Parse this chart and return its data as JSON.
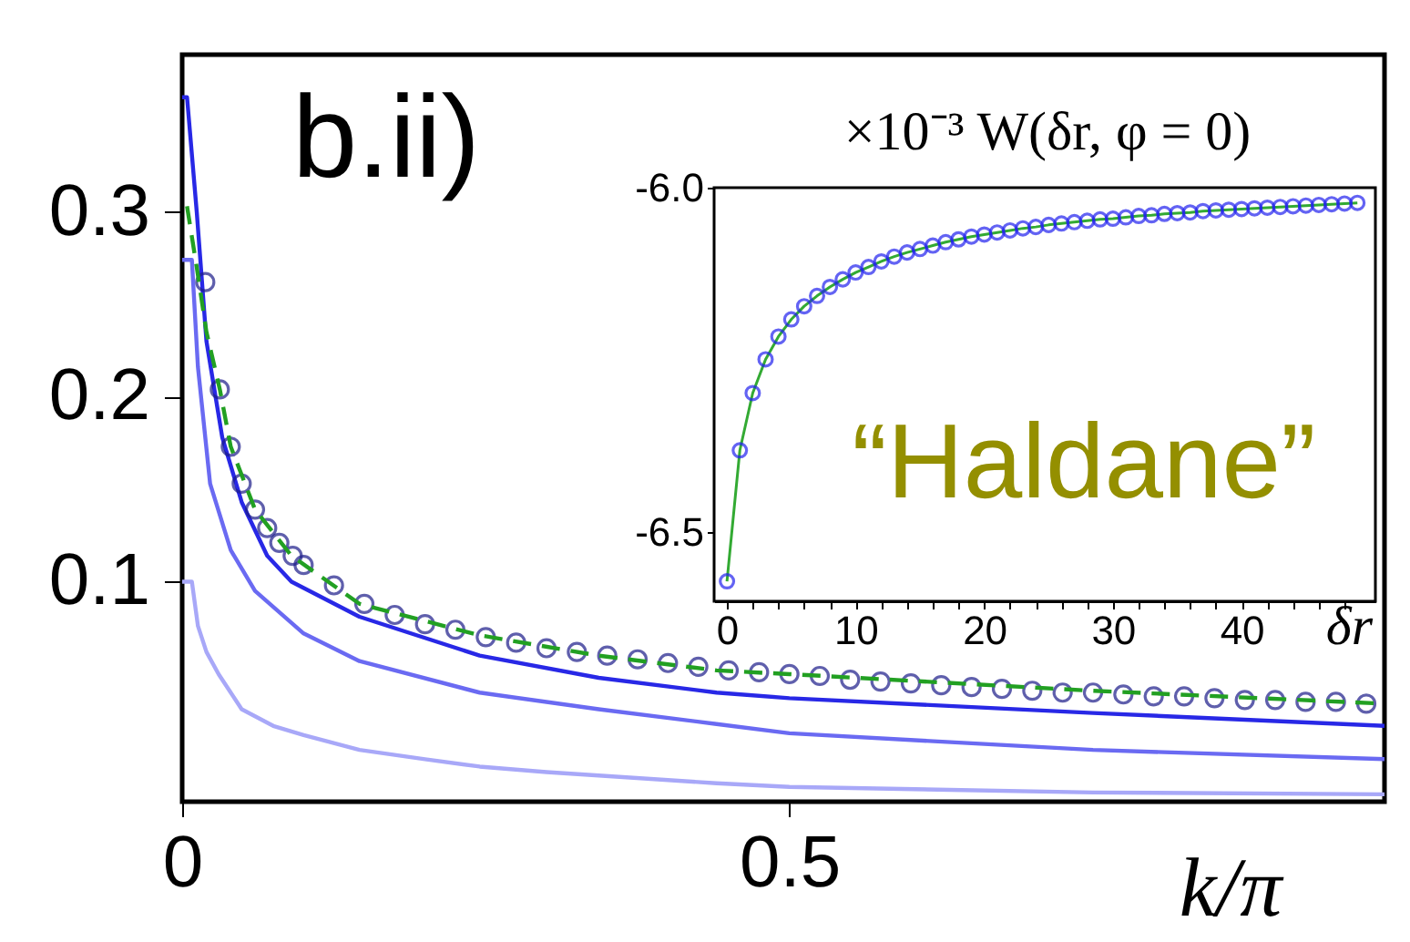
{
  "chart_data": [
    {
      "type": "line",
      "xlabel": "k/π",
      "annotations": [
        "b.ii)"
      ],
      "xlim": [
        0,
        0.99
      ],
      "ylim": [
        -0.019,
        0.385
      ],
      "xticks": [
        {
          "value": 0,
          "label": "0"
        },
        0.5
      ],
      "yticks": [
        0.1,
        0.2,
        0.3
      ],
      "grid": false,
      "series": [
        {
          "color": "#a8a8f8",
          "x": [
            0,
            0.008,
            0.013,
            0.02,
            0.03,
            0.049,
            0.075,
            0.1,
            0.146,
            0.2,
            0.245,
            0.3,
            0.44,
            0.5,
            0.75,
            0.99
          ],
          "values": [
            0.1,
            0.1,
            0.076,
            0.062,
            0.05,
            0.031,
            0.022,
            0.017,
            0.009,
            0.004,
            0.0,
            -0.003,
            -0.009,
            -0.011,
            -0.014,
            -0.015
          ]
        },
        {
          "color": "#6a6af2",
          "x": [
            0,
            0.008,
            0.013,
            0.023,
            0.04,
            0.06,
            0.1,
            0.146,
            0.245,
            0.343,
            0.44,
            0.5,
            0.75,
            0.99
          ],
          "values": [
            0.274,
            0.274,
            0.216,
            0.153,
            0.117,
            0.095,
            0.072,
            0.057,
            0.04,
            0.031,
            0.023,
            0.018,
            0.009,
            0.004
          ]
        },
        {
          "color": "#2828e6",
          "x": [
            0,
            0.004,
            0.012,
            0.02,
            0.033,
            0.049,
            0.07,
            0.09,
            0.146,
            0.245,
            0.343,
            0.44,
            0.5,
            0.75,
            0.99
          ],
          "values": [
            0.362,
            0.362,
            0.3,
            0.23,
            0.178,
            0.143,
            0.114,
            0.1,
            0.081,
            0.06,
            0.048,
            0.04,
            0.037,
            0.029,
            0.022
          ]
        },
        {
          "type": "scatter",
          "marker": "circle",
          "color": "#1c1c8a",
          "x": [
            0.019,
            0.031,
            0.04,
            0.049,
            0.06,
            0.07,
            0.08,
            0.091,
            0.1,
            0.125,
            0.15,
            0.175,
            0.2,
            0.225,
            0.25,
            0.275,
            0.3,
            0.325,
            0.35,
            0.375,
            0.4,
            0.425,
            0.45,
            0.475,
            0.5,
            0.525,
            0.55,
            0.575,
            0.6,
            0.625,
            0.65,
            0.675,
            0.7,
            0.725,
            0.75,
            0.775,
            0.8,
            0.825,
            0.85,
            0.875,
            0.9,
            0.925,
            0.95,
            0.975
          ],
          "values": [
            0.262,
            0.204,
            0.173,
            0.153,
            0.139,
            0.129,
            0.121,
            0.114,
            0.109,
            0.098,
            0.088,
            0.082,
            0.077,
            0.074,
            0.07,
            0.067,
            0.064,
            0.062,
            0.06,
            0.058,
            0.056,
            0.054,
            0.052,
            0.051,
            0.05,
            0.049,
            0.047,
            0.046,
            0.045,
            0.044,
            0.043,
            0.042,
            0.041,
            0.04,
            0.04,
            0.039,
            0.038,
            0.038,
            0.037,
            0.036,
            0.036,
            0.035,
            0.035,
            0.034
          ]
        },
        {
          "color": "#22a022",
          "line_style": "dashed",
          "x": [
            0.004,
            0.012,
            0.02,
            0.031,
            0.04,
            0.06,
            0.09,
            0.146,
            0.245,
            0.343,
            0.44,
            0.5,
            0.75,
            0.99
          ],
          "values": [
            0.303,
            0.27,
            0.235,
            0.204,
            0.173,
            0.139,
            0.114,
            0.088,
            0.071,
            0.06,
            0.052,
            0.05,
            0.041,
            0.034
          ]
        }
      ]
    },
    {
      "type": "line",
      "title": "×10⁻³ W(δr, φ = 0)",
      "xlabel": "δr",
      "annotations": [
        "“Haldane”"
      ],
      "xlim": [
        -1,
        50.4
      ],
      "ylim": [
        -6.6,
        -6.0
      ],
      "grid": false,
      "xticks": [
        0,
        {
          "value": 2,
          "label": null
        },
        {
          "value": 4,
          "label": null
        },
        {
          "value": 6,
          "label": null
        },
        {
          "value": 8,
          "label": null
        },
        10,
        {
          "value": 12,
          "label": null
        },
        {
          "value": 14,
          "label": null
        },
        {
          "value": 16,
          "label": null
        },
        {
          "value": 18,
          "label": null
        },
        20,
        {
          "value": 22,
          "label": null
        },
        {
          "value": 24,
          "label": null
        },
        {
          "value": 26,
          "label": null
        },
        {
          "value": 28,
          "label": null
        },
        30,
        {
          "value": 32,
          "label": null
        },
        {
          "value": 34,
          "label": null
        },
        {
          "value": 36,
          "label": null
        },
        {
          "value": 38,
          "label": null
        },
        40,
        {
          "value": 42,
          "label": null
        },
        {
          "value": 44,
          "label": null
        },
        {
          "value": 46,
          "label": null
        },
        {
          "value": 48,
          "label": null
        }
      ],
      "yticks": [
        {
          "value": -6.0,
          "label": "-6.0"
        },
        {
          "value": -6.5,
          "label": "-6.5"
        }
      ],
      "x": [
        0,
        1,
        2,
        3,
        4,
        5,
        6,
        7,
        8,
        9,
        10,
        11,
        12,
        13,
        14,
        15,
        16,
        17,
        18,
        19,
        20,
        21,
        22,
        23,
        24,
        25,
        26,
        27,
        28,
        29,
        30,
        31,
        32,
        33,
        34,
        35,
        36,
        37,
        38,
        39,
        40,
        41,
        42,
        43,
        44,
        45,
        46,
        47,
        48,
        49
      ],
      "series": [
        {
          "color": "#33aa33",
          "values": [
            -6.571,
            -6.381,
            -6.298,
            -6.249,
            -6.216,
            -6.191,
            -6.172,
            -6.157,
            -6.144,
            -6.133,
            -6.123,
            -6.115,
            -6.107,
            -6.1,
            -6.094,
            -6.089,
            -6.084,
            -6.079,
            -6.075,
            -6.071,
            -6.068,
            -6.065,
            -6.062,
            -6.059,
            -6.057,
            -6.054,
            -6.052,
            -6.05,
            -6.048,
            -6.046,
            -6.045,
            -6.043,
            -6.041,
            -6.04,
            -6.038,
            -6.037,
            -6.036,
            -6.034,
            -6.033,
            -6.032,
            -6.031,
            -6.03,
            -6.029,
            -6.028,
            -6.027,
            -6.026,
            -6.025,
            -6.024,
            -6.023,
            -6.022
          ]
        },
        {
          "type": "scatter",
          "marker": "circle",
          "color": "#2222ee",
          "values": [
            -6.571,
            -6.381,
            -6.298,
            -6.249,
            -6.216,
            -6.191,
            -6.172,
            -6.157,
            -6.144,
            -6.133,
            -6.123,
            -6.115,
            -6.107,
            -6.1,
            -6.094,
            -6.089,
            -6.084,
            -6.079,
            -6.075,
            -6.071,
            -6.068,
            -6.065,
            -6.062,
            -6.059,
            -6.057,
            -6.054,
            -6.052,
            -6.05,
            -6.048,
            -6.046,
            -6.045,
            -6.043,
            -6.041,
            -6.04,
            -6.038,
            -6.037,
            -6.036,
            -6.034,
            -6.033,
            -6.032,
            -6.031,
            -6.03,
            -6.029,
            -6.028,
            -6.027,
            -6.026,
            -6.025,
            -6.024,
            -6.023,
            -6.022
          ]
        }
      ]
    }
  ]
}
